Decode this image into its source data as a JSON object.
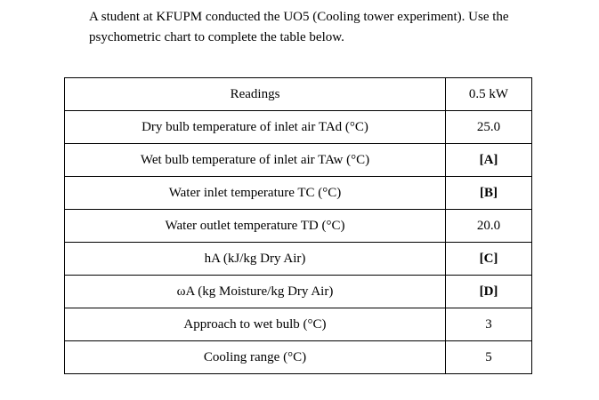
{
  "intro": "A student at KFUPM conducted the UO5 (Cooling tower experiment). Use the psychometric chart to complete the table below.",
  "table": {
    "header": {
      "label": "Readings",
      "value": "0.5 kW"
    },
    "rows": [
      {
        "label": "Dry bulb temperature of inlet air TAd (°C)",
        "value": "25.0"
      },
      {
        "label": "Wet bulb temperature of inlet air TAw  (°C)",
        "value": "[A]"
      },
      {
        "label": "Water inlet temperature TC (°C)",
        "value": "[B]"
      },
      {
        "label": "Water outlet temperature TD (°C)",
        "value": "20.0"
      },
      {
        "label": "hA (kJ/kg Dry Air)",
        "value": "[C]"
      },
      {
        "label": "ωA (kg Moisture/kg Dry Air)",
        "value": "[D]"
      },
      {
        "label": "Approach to wet bulb (°C)",
        "value": "3"
      },
      {
        "label": "Cooling range (°C)",
        "value": "5"
      }
    ]
  }
}
